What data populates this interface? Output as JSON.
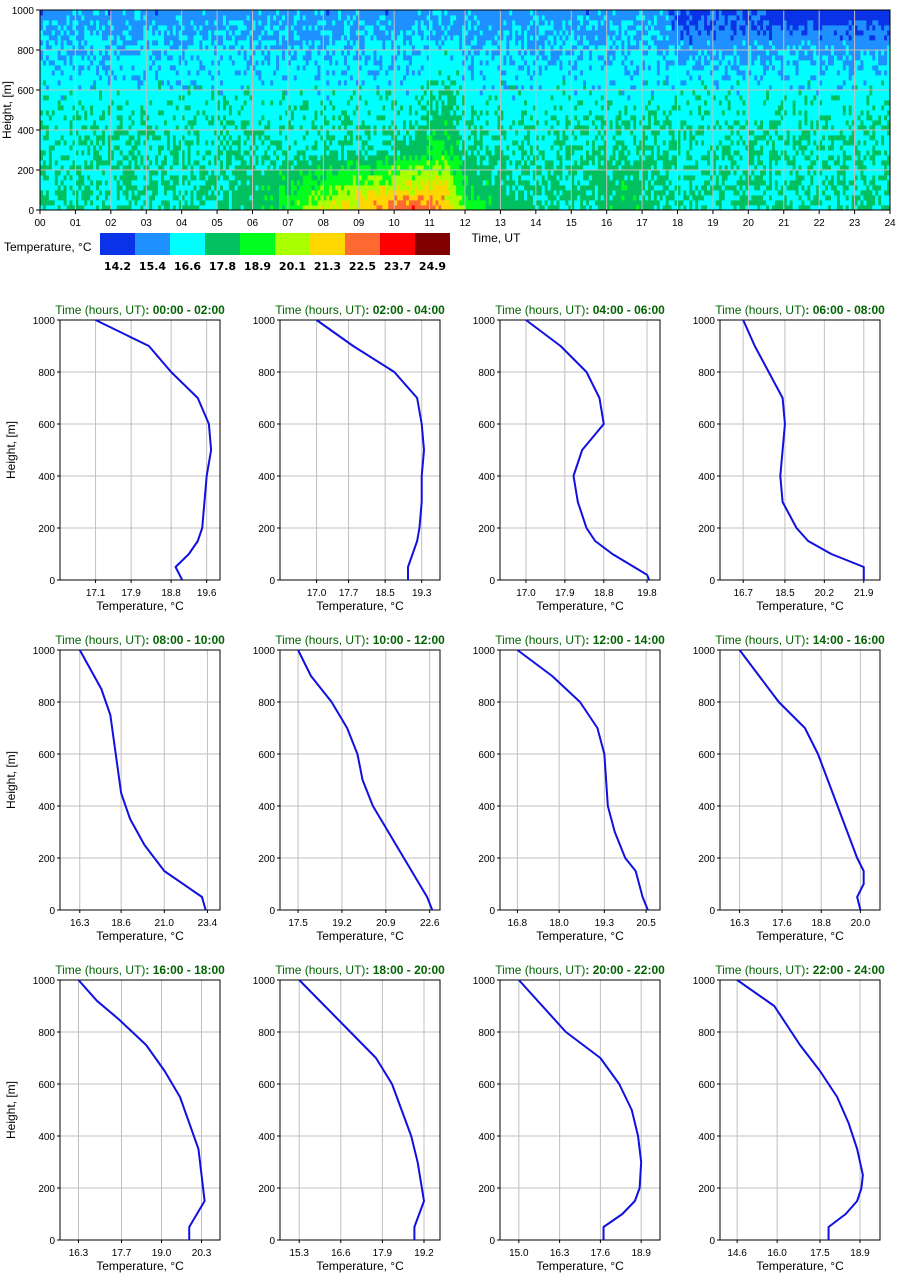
{
  "chart_data": [
    {
      "type": "heatmap",
      "title": "",
      "xlabel": "Time, UT",
      "ylabel": "Height, [m]",
      "xlim": [
        0,
        24
      ],
      "ylim": [
        0,
        1000
      ],
      "x_ticks": [
        "00",
        "01",
        "02",
        "03",
        "04",
        "05",
        "06",
        "07",
        "08",
        "09",
        "10",
        "11",
        "12",
        "13",
        "14",
        "15",
        "16",
        "17",
        "18",
        "19",
        "20",
        "21",
        "22",
        "23",
        "24"
      ],
      "y_ticks": [
        "0",
        "200",
        "400",
        "600",
        "800",
        "1000"
      ],
      "grid": true,
      "colorbar": {
        "label": "Temperature, °C",
        "colors": [
          "#0a32e6",
          "#1e90ff",
          "#00ffff",
          "#00c060",
          "#00ff1e",
          "#aaff00",
          "#ffd700",
          "#ff6a32",
          "#ff0000",
          "#800000"
        ],
        "values": [
          "14.2",
          "15.4",
          "16.6",
          "17.8",
          "18.9",
          "20.1",
          "21.3",
          "22.5",
          "23.7",
          "24.9"
        ]
      }
    },
    {
      "type": "line",
      "title_prefix": "Time (hours, UT)",
      "title_range": ": 00:00 - 02:00",
      "xlabel": "Temperature, °C",
      "ylabel": "Height, [m]",
      "xlim": [
        16.3,
        19.9
      ],
      "ylim": [
        0,
        1000
      ],
      "x_ticks": [
        17.1,
        17.9,
        18.8,
        19.6
      ],
      "x_tick_labels": [
        "17.1",
        "17.9",
        "18.8",
        "19.6"
      ],
      "y_ticks": [
        "0",
        "200",
        "400",
        "600",
        "800",
        "1000"
      ],
      "x": [
        19.05,
        18.9,
        19.2,
        19.4,
        19.5,
        19.55,
        19.6,
        19.7,
        19.65,
        19.4,
        18.8,
        18.3,
        17.1
      ],
      "y": [
        0,
        50,
        100,
        150,
        200,
        300,
        400,
        500,
        600,
        700,
        800,
        900,
        1000
      ]
    },
    {
      "type": "line",
      "title_prefix": "Time (hours, UT)",
      "title_range": ": 02:00 - 04:00",
      "xlabel": "Temperature, °C",
      "ylabel": "",
      "xlim": [
        16.2,
        19.7
      ],
      "ylim": [
        0,
        1000
      ],
      "x_ticks": [
        17.0,
        17.7,
        18.5,
        19.3
      ],
      "x_tick_labels": [
        "17.0",
        "17.7",
        "18.5",
        "19.3"
      ],
      "y_ticks": [
        "0",
        "200",
        "400",
        "600",
        "800",
        "1000"
      ],
      "x": [
        19.0,
        19.0,
        19.1,
        19.2,
        19.25,
        19.3,
        19.3,
        19.35,
        19.3,
        19.2,
        18.7,
        17.8,
        17.0
      ],
      "y": [
        0,
        50,
        100,
        150,
        200,
        300,
        400,
        500,
        600,
        700,
        800,
        900,
        1000
      ]
    },
    {
      "type": "line",
      "title_prefix": "Time (hours, UT)",
      "title_range": ": 04:00 - 06:00",
      "xlabel": "Temperature, °C",
      "ylabel": "",
      "xlim": [
        16.4,
        20.1
      ],
      "ylim": [
        0,
        1000
      ],
      "x_ticks": [
        17.0,
        17.9,
        18.8,
        19.8
      ],
      "x_tick_labels": [
        "17.0",
        "17.9",
        "18.8",
        "19.8"
      ],
      "y_ticks": [
        "0",
        "200",
        "400",
        "600",
        "800",
        "1000"
      ],
      "x": [
        19.85,
        19.8,
        19.5,
        19.0,
        18.6,
        18.4,
        18.2,
        18.1,
        18.3,
        18.8,
        18.7,
        18.4,
        17.8,
        17.0
      ],
      "y": [
        0,
        20,
        50,
        100,
        150,
        200,
        300,
        400,
        500,
        600,
        700,
        800,
        900,
        1000
      ]
    },
    {
      "type": "line",
      "title_prefix": "Time (hours, UT)",
      "title_range": ": 06:00 - 08:00",
      "xlabel": "Temperature, °C",
      "ylabel": "",
      "xlim": [
        15.7,
        22.6
      ],
      "ylim": [
        0,
        1000
      ],
      "x_ticks": [
        16.7,
        18.5,
        20.2,
        21.9
      ],
      "x_tick_labels": [
        "16.7",
        "18.5",
        "20.2",
        "21.9"
      ],
      "y_ticks": [
        "0",
        "200",
        "400",
        "600",
        "800",
        "1000"
      ],
      "x": [
        21.9,
        21.9,
        20.5,
        19.5,
        19.0,
        18.7,
        18.4,
        18.3,
        18.4,
        18.5,
        18.4,
        17.8,
        17.2,
        16.7
      ],
      "y": [
        0,
        50,
        100,
        150,
        200,
        250,
        300,
        400,
        500,
        600,
        700,
        800,
        900,
        1000
      ]
    },
    {
      "type": "line",
      "title_prefix": "Time (hours, UT)",
      "title_range": ": 08:00 - 10:00",
      "xlabel": "Temperature, °C",
      "ylabel": "Height, [m]",
      "xlim": [
        15.2,
        24.1
      ],
      "ylim": [
        0,
        1000
      ],
      "x_ticks": [
        16.3,
        18.6,
        21.0,
        23.4
      ],
      "x_tick_labels": [
        "16.3",
        "18.6",
        "21.0",
        "23.4"
      ],
      "y_ticks": [
        "0",
        "200",
        "400",
        "600",
        "800",
        "1000"
      ],
      "x": [
        23.3,
        23.1,
        21.0,
        19.9,
        19.1,
        18.6,
        18.4,
        18.2,
        18.0,
        17.5,
        16.3
      ],
      "y": [
        0,
        50,
        150,
        250,
        350,
        450,
        550,
        650,
        750,
        850,
        1000
      ]
    },
    {
      "type": "line",
      "title_prefix": "Time (hours, UT)",
      "title_range": ": 10:00 - 12:00",
      "xlabel": "Temperature, °C",
      "ylabel": "",
      "xlim": [
        16.8,
        23.0
      ],
      "ylim": [
        0,
        1000
      ],
      "x_ticks": [
        17.5,
        19.2,
        20.9,
        22.6
      ],
      "x_tick_labels": [
        "17.5",
        "19.2",
        "20.9",
        "22.6"
      ],
      "y_ticks": [
        "0",
        "200",
        "400",
        "600",
        "800",
        "1000"
      ],
      "x": [
        22.7,
        22.5,
        21.6,
        21.0,
        20.4,
        20.0,
        19.8,
        19.4,
        18.8,
        18.0,
        17.5
      ],
      "y": [
        0,
        50,
        200,
        300,
        400,
        500,
        600,
        700,
        800,
        900,
        1000
      ]
    },
    {
      "type": "line",
      "title_prefix": "Time (hours, UT)",
      "title_range": ": 12:00 - 14:00",
      "xlabel": "Temperature, °C",
      "ylabel": "",
      "xlim": [
        16.3,
        20.9
      ],
      "ylim": [
        0,
        1000
      ],
      "x_ticks": [
        16.8,
        18.0,
        19.3,
        20.5
      ],
      "x_tick_labels": [
        "16.8",
        "18.0",
        "19.3",
        "20.5"
      ],
      "y_ticks": [
        "0",
        "200",
        "400",
        "600",
        "800",
        "1000"
      ],
      "x": [
        20.55,
        20.4,
        20.2,
        19.9,
        19.6,
        19.4,
        19.35,
        19.3,
        19.1,
        18.6,
        17.8,
        16.8
      ],
      "y": [
        0,
        50,
        150,
        200,
        300,
        400,
        500,
        600,
        700,
        800,
        900,
        1000
      ]
    },
    {
      "type": "line",
      "title_prefix": "Time (hours, UT)",
      "title_range": ": 14:00 - 16:00",
      "xlabel": "Temperature, °C",
      "ylabel": "",
      "xlim": [
        15.7,
        20.6
      ],
      "ylim": [
        0,
        1000
      ],
      "x_ticks": [
        16.3,
        17.6,
        18.8,
        20.0
      ],
      "x_tick_labels": [
        "16.3",
        "17.6",
        "18.8",
        "20.0"
      ],
      "y_ticks": [
        "0",
        "200",
        "400",
        "600",
        "800",
        "1000"
      ],
      "x": [
        20.0,
        19.9,
        20.1,
        20.1,
        19.9,
        19.6,
        19.3,
        19.0,
        18.7,
        18.3,
        17.5,
        16.3
      ],
      "y": [
        0,
        50,
        100,
        150,
        200,
        300,
        400,
        500,
        600,
        700,
        800,
        1000
      ]
    },
    {
      "type": "line",
      "title_prefix": "Time (hours, UT)",
      "title_range": ": 16:00 - 18:00",
      "xlabel": "Temperature, °C",
      "ylabel": "Height, [m]",
      "xlim": [
        15.7,
        20.9
      ],
      "ylim": [
        0,
        1000
      ],
      "x_ticks": [
        16.3,
        17.7,
        19.0,
        20.3
      ],
      "x_tick_labels": [
        "16.3",
        "17.7",
        "19.0",
        "20.3"
      ],
      "y_ticks": [
        "0",
        "200",
        "400",
        "600",
        "800",
        "1000"
      ],
      "x": [
        19.9,
        19.9,
        20.4,
        20.3,
        20.2,
        19.9,
        19.6,
        19.1,
        18.5,
        17.6,
        16.9,
        16.3
      ],
      "y": [
        0,
        50,
        150,
        250,
        350,
        450,
        550,
        650,
        750,
        850,
        920,
        1000
      ]
    },
    {
      "type": "line",
      "title_prefix": "Time (hours, UT)",
      "title_range": ": 18:00 - 20:00",
      "xlabel": "Temperature, °C",
      "ylabel": "",
      "xlim": [
        14.7,
        19.7
      ],
      "ylim": [
        0,
        1000
      ],
      "x_ticks": [
        15.3,
        16.6,
        17.9,
        19.2
      ],
      "x_tick_labels": [
        "15.3",
        "16.6",
        "17.9",
        "19.2"
      ],
      "y_ticks": [
        "0",
        "200",
        "400",
        "600",
        "800",
        "1000"
      ],
      "x": [
        18.9,
        18.9,
        19.2,
        19.0,
        18.8,
        18.5,
        18.2,
        17.7,
        16.9,
        16.1,
        15.3
      ],
      "y": [
        0,
        50,
        150,
        300,
        400,
        500,
        600,
        700,
        800,
        900,
        1000
      ]
    },
    {
      "type": "line",
      "title_prefix": "Time (hours, UT)",
      "title_range": ": 20:00 - 22:00",
      "xlabel": "Temperature, °C",
      "ylabel": "",
      "xlim": [
        14.4,
        19.5
      ],
      "ylim": [
        0,
        1000
      ],
      "x_ticks": [
        15.0,
        16.3,
        17.6,
        18.9
      ],
      "x_tick_labels": [
        "15.0",
        "16.3",
        "17.6",
        "18.9"
      ],
      "y_ticks": [
        "0",
        "200",
        "400",
        "600",
        "800",
        "1000"
      ],
      "x": [
        17.7,
        17.7,
        18.3,
        18.7,
        18.85,
        18.9,
        18.8,
        18.6,
        18.2,
        17.6,
        16.5,
        15.0
      ],
      "y": [
        0,
        50,
        100,
        150,
        200,
        300,
        400,
        500,
        600,
        700,
        800,
        1000
      ]
    },
    {
      "type": "line",
      "title_prefix": "Time (hours, UT)",
      "title_range": ": 22:00 - 24:00",
      "xlabel": "Temperature, °C",
      "ylabel": "",
      "xlim": [
        14.0,
        19.6
      ],
      "ylim": [
        0,
        1000
      ],
      "x_ticks": [
        14.6,
        16.0,
        17.5,
        18.9
      ],
      "x_tick_labels": [
        "14.6",
        "16.0",
        "17.5",
        "18.9"
      ],
      "y_ticks": [
        "0",
        "200",
        "400",
        "600",
        "800",
        "1000"
      ],
      "x": [
        17.8,
        17.8,
        18.4,
        18.8,
        18.95,
        19.0,
        18.8,
        18.5,
        18.1,
        17.5,
        16.8,
        15.9,
        14.6
      ],
      "y": [
        0,
        50,
        100,
        150,
        200,
        250,
        350,
        450,
        550,
        650,
        750,
        900,
        1000
      ]
    }
  ]
}
